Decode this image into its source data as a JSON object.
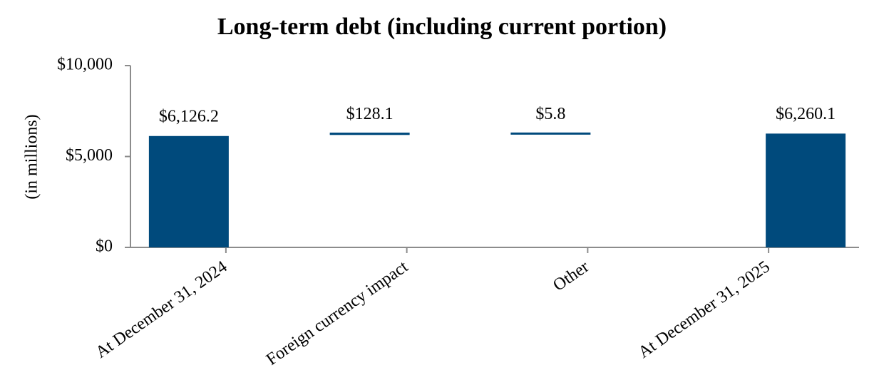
{
  "chart_data": {
    "type": "waterfall",
    "title": "Long-term debt (including current portion)",
    "y_label": "(in millions)",
    "categories": [
      "At December 31, 2024",
      "Foreign currency impact",
      "Other",
      "At December 31, 2025"
    ],
    "values": [
      6126.2,
      128.1,
      5.8,
      6260.1
    ],
    "value_labels": [
      "$6,126.2",
      "$128.1",
      "$5.8",
      "$6,260.1"
    ],
    "color": "#004a7c",
    "ylim": [
      0,
      10000
    ],
    "yticks": [
      {
        "value": 0,
        "label": "$0"
      },
      {
        "value": 5000,
        "label": "$5,000"
      },
      {
        "value": 10000,
        "label": "$10,000"
      }
    ]
  }
}
